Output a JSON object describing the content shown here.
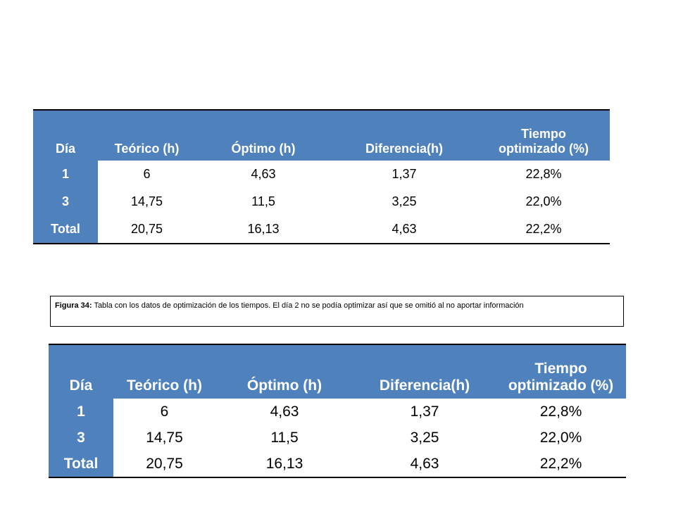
{
  "table_headers": [
    "Día",
    "Teórico (h)",
    "Óptimo (h)",
    "Diferencia(h)",
    "Tiempo optimizado (%)"
  ],
  "header_last_line1": "Tiempo",
  "header_last_line2": "optimizado (%)",
  "rows": [
    [
      "1",
      "6",
      "4,63",
      "1,37",
      "22,8%"
    ],
    [
      "3",
      "14,75",
      "11,5",
      "3,25",
      "22,0%"
    ],
    [
      "Total",
      "20,75",
      "16,13",
      "4,63",
      "22,2%"
    ]
  ],
  "caption": {
    "label": "Figura 34:",
    "text": "Tabla con los datos de optimización de los tiempos. El día 2 no se podía optimizar así que se omitió al no aportar información"
  },
  "colors": {
    "header_bg": "#4f81bd",
    "header_text": "#ffffff"
  }
}
